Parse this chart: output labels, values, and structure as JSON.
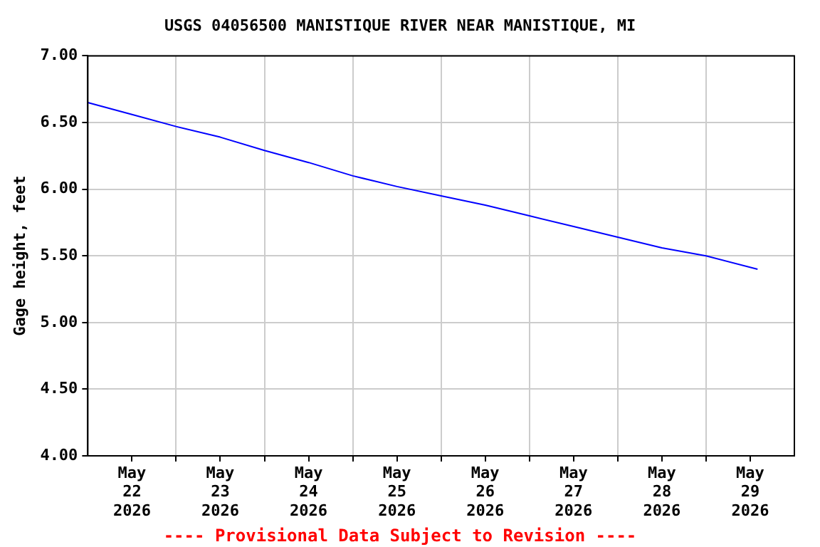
{
  "chart_data": {
    "type": "line",
    "title": "USGS 04056500 MANISTIQUE RIVER NEAR MANISTIQUE, MI",
    "ylabel": "Gage height, feet",
    "x": [
      "2026-05-22T00:00",
      "2026-05-22T12:00",
      "2026-05-23T00:00",
      "2026-05-23T12:00",
      "2026-05-24T00:00",
      "2026-05-24T12:00",
      "2026-05-25T00:00",
      "2026-05-25T12:00",
      "2026-05-26T00:00",
      "2026-05-26T12:00",
      "2026-05-27T00:00",
      "2026-05-27T12:00",
      "2026-05-28T00:00",
      "2026-05-28T12:00",
      "2026-05-29T00:00",
      "2026-05-29T14:00"
    ],
    "series": [
      {
        "color": "#0000ff",
        "values": [
          6.65,
          6.56,
          6.47,
          6.39,
          6.29,
          6.2,
          6.1,
          6.02,
          5.95,
          5.88,
          5.8,
          5.72,
          5.64,
          5.56,
          5.5,
          5.4
        ]
      }
    ],
    "xlim": [
      "2026-05-22T00:00",
      "2026-05-30T00:00"
    ],
    "xticks": [
      {
        "value": "2026-05-22T12:00",
        "label": "May\n22\n2026"
      },
      {
        "value": "2026-05-23T00:00",
        "label": null
      },
      {
        "value": "2026-05-23T12:00",
        "label": "May\n23\n2026"
      },
      {
        "value": "2026-05-24T00:00",
        "label": null
      },
      {
        "value": "2026-05-24T12:00",
        "label": "May\n24\n2026"
      },
      {
        "value": "2026-05-25T00:00",
        "label": null
      },
      {
        "value": "2026-05-25T12:00",
        "label": "May\n25\n2026"
      },
      {
        "value": "2026-05-26T00:00",
        "label": null
      },
      {
        "value": "2026-05-26T12:00",
        "label": "May\n26\n2026"
      },
      {
        "value": "2026-05-27T00:00",
        "label": null
      },
      {
        "value": "2026-05-27T12:00",
        "label": "May\n27\n2026"
      },
      {
        "value": "2026-05-28T00:00",
        "label": null
      },
      {
        "value": "2026-05-28T12:00",
        "label": "May\n28\n2026"
      },
      {
        "value": "2026-05-29T00:00",
        "label": null
      },
      {
        "value": "2026-05-29T12:00",
        "label": "May\n29\n2026"
      }
    ],
    "ylim": [
      4,
      7
    ],
    "yticks": [
      {
        "value": 4,
        "label": "4.00"
      },
      {
        "value": 4.5,
        "label": "4.50"
      },
      {
        "value": 5,
        "label": "5.00"
      },
      {
        "value": 5.5,
        "label": "5.50"
      },
      {
        "value": 6,
        "label": "6.00"
      },
      {
        "value": 6.5,
        "label": "6.50"
      },
      {
        "value": 7,
        "label": "7.00"
      }
    ],
    "grid": true,
    "marker": "none",
    "line_style": "solid",
    "legend": false,
    "annotations": [
      "---- Provisional Data Subject to Revision ----"
    ]
  }
}
